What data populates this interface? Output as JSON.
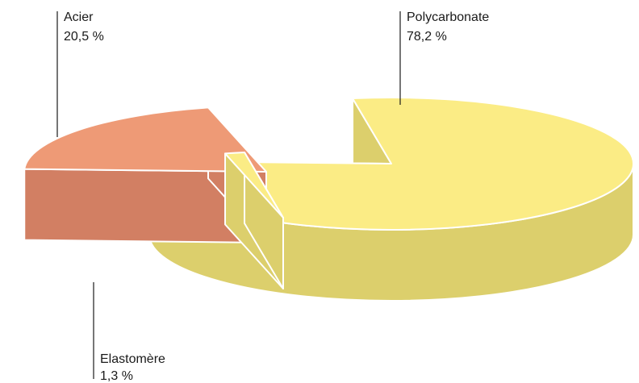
{
  "chart_data": {
    "type": "pie",
    "style": "3d-exploded",
    "slices": [
      {
        "label": "Polycarbonate",
        "value": 78.2,
        "value_label": "78,2 %",
        "color": "#fbec85",
        "side_color": "#dccf6c"
      },
      {
        "label": "Acier",
        "value": 20.5,
        "value_label": "20,5 %",
        "color": "#ee9a76",
        "side_color": "#d27f63"
      },
      {
        "label": "Elastomère",
        "value": 1.3,
        "value_label": "1,3 %",
        "color": "#fbec85",
        "side_color": "#dccf6c"
      }
    ]
  }
}
